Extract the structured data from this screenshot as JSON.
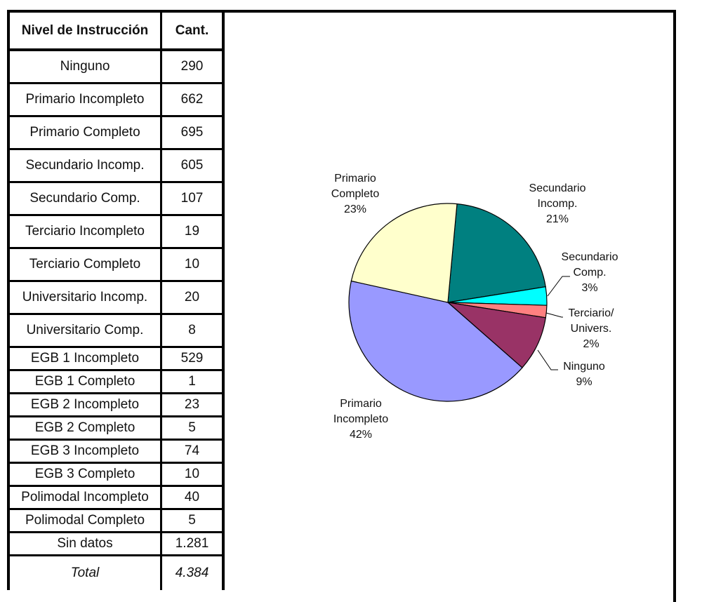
{
  "table": {
    "headers": [
      "Nivel de Instrucción",
      "Cant."
    ],
    "rows": [
      [
        "Ninguno",
        "290"
      ],
      [
        "Primario Incompleto",
        "662"
      ],
      [
        "Primario Completo",
        "695"
      ],
      [
        "Secundario Incomp.",
        "605"
      ],
      [
        "Secundario Comp.",
        "107"
      ],
      [
        "Terciario Incompleto",
        "19"
      ],
      [
        "Terciario Completo",
        "10"
      ],
      [
        "Universitario Incomp.",
        "20"
      ],
      [
        "Universitario Comp.",
        "8"
      ],
      [
        "EGB 1 Incompleto",
        "529"
      ],
      [
        "EGB 1 Completo",
        "1"
      ],
      [
        "EGB 2 Incompleto",
        "23"
      ],
      [
        "EGB 2 Completo",
        "5"
      ],
      [
        "EGB 3 Incompleto",
        "74"
      ],
      [
        "EGB 3 Completo",
        "10"
      ],
      [
        "Polimodal Incompleto",
        "40"
      ],
      [
        "Polimodal Completo",
        "5"
      ],
      [
        "Sin datos",
        "1.281"
      ]
    ],
    "total": [
      "Total",
      "4.384"
    ]
  },
  "chart_data": {
    "type": "pie",
    "title": "",
    "slices": [
      {
        "label": [
          "Secundario",
          "Incomp."
        ],
        "pct_label": "21%",
        "value": 21,
        "color": "#008080"
      },
      {
        "label": [
          "Secundario",
          "Comp."
        ],
        "pct_label": "3%",
        "value": 3,
        "color": "#00FFFF"
      },
      {
        "label": [
          "Terciario/",
          "Univers."
        ],
        "pct_label": "2%",
        "value": 2,
        "color": "#FF8080"
      },
      {
        "label": [
          "Ninguno"
        ],
        "pct_label": "9%",
        "value": 9,
        "color": "#993366"
      },
      {
        "label": [
          "Primario",
          "Incompleto"
        ],
        "pct_label": "42%",
        "value": 42,
        "color": "#9999FF"
      },
      {
        "label": [
          "Primario",
          "Completo"
        ],
        "pct_label": "23%",
        "value": 23,
        "color": "#FFFFCC"
      }
    ]
  }
}
